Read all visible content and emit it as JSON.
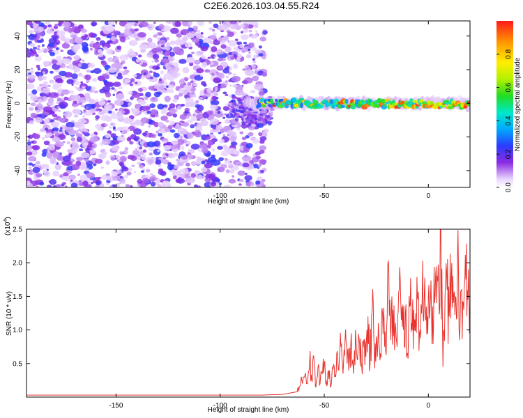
{
  "chart_data": [
    {
      "type": "heatmap",
      "title": "C2E6.2026.103.04.55.R24",
      "xlabel": "Height of straight line (km)",
      "ylabel": "Frequency (Hz)",
      "xlim": [
        -193,
        20
      ],
      "ylim": [
        -50,
        49
      ],
      "xticks": [
        -150,
        -100,
        -50,
        0
      ],
      "yticks": [
        -40,
        -20,
        0,
        20,
        40
      ],
      "colorbar": {
        "label": "Normalized spectral amplitude",
        "range": [
          0,
          1
        ],
        "ticks": [
          0.0,
          0.2,
          0.4,
          0.6,
          0.8
        ],
        "colormap": "rainbow-white"
      },
      "regions": [
        {
          "name": "broadband noise",
          "x_from": -193,
          "x_to": -78,
          "freq_from": -50,
          "freq_to": 49,
          "amplitude": [
            0.05,
            0.25
          ]
        },
        {
          "name": "signal band",
          "x_from": -88,
          "x_to": 20,
          "freq_center": 0,
          "freq_halfwidth": 3,
          "amplitude": [
            0.2,
            1.0
          ]
        }
      ]
    },
    {
      "type": "line",
      "xlabel": "Height of straight line (km)",
      "ylabel": "SNR (10 * v/v)",
      "y_scale_label": "(x10",
      "y_scale_exponent": "4",
      "xlim": [
        -193,
        20
      ],
      "ylim": [
        0,
        25000
      ],
      "xticks": [
        -150,
        -100,
        -50,
        0
      ],
      "yticks": [
        5000,
        10000,
        15000,
        20000,
        25000
      ],
      "ytick_labels": [
        "0.5",
        "1.0",
        "1.5",
        "2.0",
        "2.5"
      ],
      "series": [
        {
          "name": "SNR",
          "color": "#e8322d",
          "x": [
            -193,
            -150,
            -100,
            -80,
            -70,
            -63,
            -62,
            -60,
            -58,
            -57,
            -56,
            -55,
            -54,
            -53,
            -52,
            -51,
            -50,
            -49,
            -48,
            -47,
            -46,
            -45,
            -44,
            -43,
            -42,
            -41,
            -40,
            -39,
            -38,
            -37,
            -36,
            -35,
            -34,
            -33,
            -32,
            -31,
            -30,
            -29,
            -28,
            -27,
            -26,
            -25,
            -24,
            -23,
            -22,
            -21,
            -20,
            -19,
            -18,
            -17,
            -16,
            -15,
            -14,
            -13,
            -12,
            -11,
            -10,
            -9,
            -8,
            -7,
            -6,
            -5,
            -4,
            -3,
            -2,
            -1,
            0,
            1,
            2,
            3,
            4,
            5,
            6,
            7,
            8,
            9,
            10,
            11,
            12,
            13,
            14,
            15,
            16,
            17,
            18,
            19,
            20
          ],
          "y": [
            300,
            300,
            300,
            300,
            400,
            800,
            1500,
            3000,
            2000,
            5500,
            2500,
            6000,
            1500,
            4500,
            2000,
            3500,
            5000,
            2500,
            4000,
            1500,
            4500,
            3000,
            6500,
            4000,
            7500,
            3500,
            8500,
            5000,
            6000,
            9500,
            3500,
            10000,
            5500,
            8000,
            4500,
            8500,
            6000,
            12000,
            5000,
            13000,
            7000,
            9000,
            11000,
            6500,
            12500,
            7500,
            10500,
            19500,
            8500,
            13000,
            10000,
            7500,
            16000,
            11500,
            10000,
            12500,
            6500,
            13500,
            11000,
            13000,
            12500,
            14500,
            10000,
            14000,
            14500,
            13500,
            15000,
            14500,
            13500,
            14000,
            14000,
            15500,
            24800,
            4500,
            15000,
            16000,
            12000,
            17500,
            14000,
            15000,
            21500,
            8500,
            16000,
            13000,
            17500,
            14500,
            14000
          ]
        }
      ]
    }
  ]
}
